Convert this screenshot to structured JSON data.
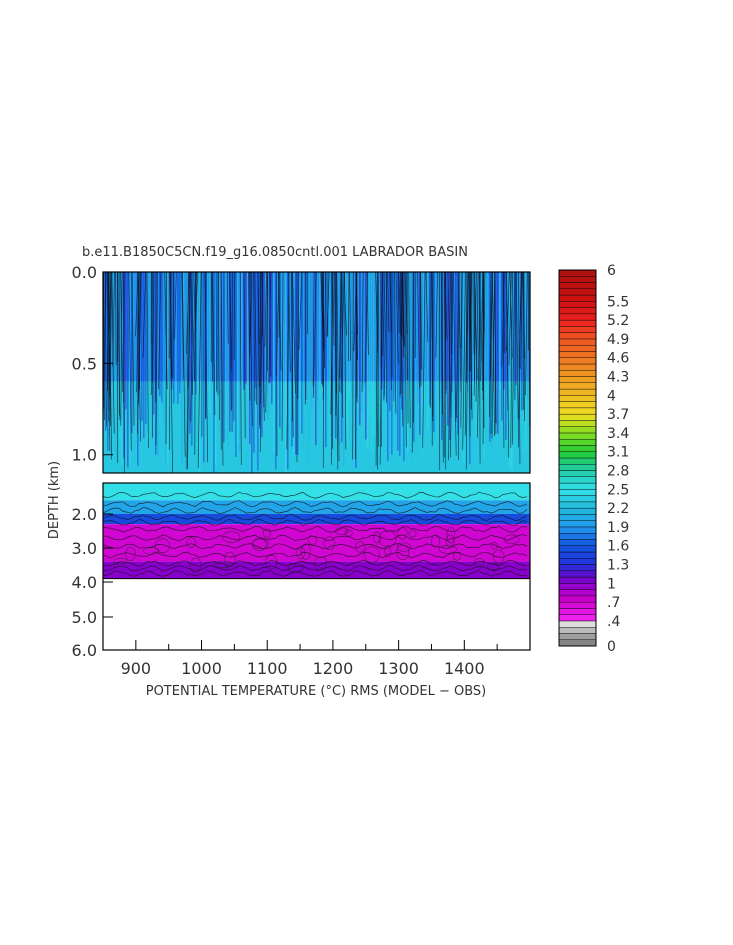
{
  "chart_data": {
    "type": "heatmap",
    "title": "b.e11.B1850C5CN.f19_g16.0850cntl.001 LABRADOR BASIN",
    "xlabel": "POTENTIAL TEMPERATURE (°C) RMS (MODEL − OBS)",
    "ylabel": "DEPTH (km)",
    "x_ticks": [
      "900",
      "1000",
      "1100",
      "1200",
      "1300",
      "1400"
    ],
    "x_tick_values": [
      900,
      1000,
      1100,
      1200,
      1300,
      1400
    ],
    "xlim": [
      850,
      1500
    ],
    "upper_panel": {
      "ylim": [
        0.0,
        1.1
      ],
      "y_ticks": [
        "0.0",
        "0.5",
        "1.0"
      ],
      "y_tick_values": [
        0.0,
        0.5,
        1.0
      ]
    },
    "lower_panel": {
      "ylim": [
        1.1,
        6.0
      ],
      "y_ticks": [
        "2.0",
        "3.0",
        "4.0",
        "5.0",
        "6.0"
      ],
      "y_tick_values": [
        2.0,
        3.0,
        4.0,
        5.0,
        6.0
      ],
      "data_bottom_depth": 3.9
    },
    "depth_bands": [
      {
        "from": 0.0,
        "to": 0.6,
        "value": 1.8
      },
      {
        "from": 0.6,
        "to": 1.1,
        "value": 2.3
      },
      {
        "from": 1.1,
        "to": 1.6,
        "value": 2.5
      },
      {
        "from": 1.6,
        "to": 2.0,
        "value": 2.0
      },
      {
        "from": 2.0,
        "to": 2.3,
        "value": 1.5
      },
      {
        "from": 2.3,
        "to": 3.4,
        "value": 0.7
      },
      {
        "from": 3.4,
        "to": 3.9,
        "value": 1.0
      }
    ],
    "colorbar": {
      "range": [
        0,
        6
      ],
      "labels": [
        "6",
        "5.5",
        "5.2",
        "4.9",
        "4.6",
        "4.3",
        "4",
        "3.7",
        "3.4",
        "3.1",
        "2.8",
        "2.5",
        "2.2",
        "1.9",
        "1.6",
        "1.3",
        "1",
        ".7",
        ".4",
        "0"
      ],
      "label_values": [
        6,
        5.5,
        5.2,
        4.9,
        4.6,
        4.3,
        4,
        3.7,
        3.4,
        3.1,
        2.8,
        2.5,
        2.2,
        1.9,
        1.6,
        1.3,
        1,
        0.7,
        0.4,
        0
      ]
    }
  }
}
